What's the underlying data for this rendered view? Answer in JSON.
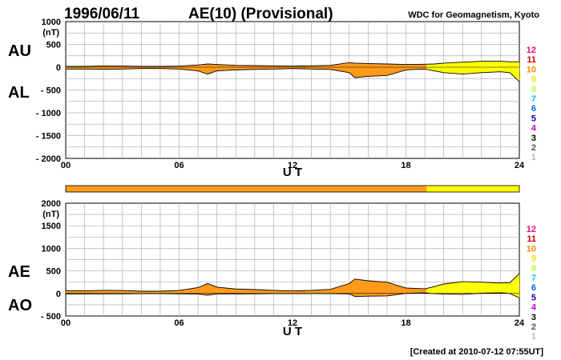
{
  "header": {
    "date": "1996/06/11",
    "title": "AE(10) (Provisional)",
    "source": "WDC for Geomagnetism, Kyoto"
  },
  "footer": {
    "created": "[Created at 2010-07-12 07:55UT]"
  },
  "station_legend": {
    "labels": [
      "12",
      "11",
      "10",
      "9",
      "8",
      "7",
      "6",
      "5",
      "4",
      "3",
      "2",
      "1"
    ],
    "colors": [
      "#ff007f",
      "#cc0000",
      "#ff8c00",
      "#e6e600",
      "#b0ff40",
      "#00c8e6",
      "#0066ff",
      "#1a00b3",
      "#cc00cc",
      "#000000",
      "#555555",
      "#bbbbbb"
    ]
  },
  "fill_colors": {
    "orange": "#ff9a1a",
    "yellow": "#ffff00"
  },
  "chart_data": [
    {
      "type": "area",
      "panel": "AU/AL",
      "series_labels": [
        "AU",
        "AL"
      ],
      "xlabel": "U T",
      "ylabel_unit": "(nT)",
      "ylim": [
        -2000,
        1000
      ],
      "yticks": [
        1000,
        500,
        0,
        -500,
        -1000,
        -1500,
        -2000
      ],
      "ytick_labels": [
        "1000",
        "500",
        "0",
        "- 500",
        "- 1000",
        "- 1500",
        "- 2000"
      ],
      "xlim": [
        0,
        24
      ],
      "xticks": [
        0,
        6,
        12,
        18,
        24
      ],
      "xtick_labels": [
        "00",
        "06",
        "12",
        "18",
        "24"
      ],
      "grid": true,
      "color_change_hours": [
        19.1
      ],
      "colors": [
        "#ff9a1a",
        "#ffff00"
      ],
      "x": [
        0,
        1,
        2,
        3,
        4,
        5,
        6,
        7,
        7.5,
        8,
        9,
        10,
        11,
        12,
        13,
        14,
        15,
        15.3,
        16,
        17,
        18,
        19,
        19.5,
        20,
        21,
        22,
        23,
        23.5,
        24
      ],
      "au": [
        20,
        20,
        30,
        25,
        20,
        20,
        25,
        50,
        70,
        60,
        40,
        35,
        30,
        25,
        30,
        40,
        100,
        90,
        80,
        70,
        60,
        65,
        70,
        90,
        110,
        130,
        130,
        120,
        120
      ],
      "al": [
        -40,
        -40,
        -45,
        -40,
        -30,
        -30,
        -40,
        -80,
        -150,
        -80,
        -60,
        -50,
        -40,
        -30,
        -40,
        -50,
        -120,
        -230,
        -200,
        -180,
        -60,
        -40,
        -80,
        -120,
        -150,
        -120,
        -100,
        -120,
        -320
      ]
    },
    {
      "type": "area",
      "panel": "AE/AO",
      "series_labels": [
        "AE",
        "AO"
      ],
      "xlabel": "U T",
      "ylabel_unit": "(nT)",
      "ylim": [
        -500,
        2000
      ],
      "yticks": [
        2000,
        1500,
        1000,
        500,
        0,
        -500
      ],
      "ytick_labels": [
        "2000",
        "1500",
        "1000",
        "500",
        "0",
        "- 500"
      ],
      "xlim": [
        0,
        24
      ],
      "xticks": [
        0,
        6,
        12,
        18,
        24
      ],
      "xtick_labels": [
        "00",
        "06",
        "12",
        "18",
        "24"
      ],
      "grid": true,
      "color_change_hours": [
        19.1
      ],
      "colors": [
        "#ff9a1a",
        "#ffff00"
      ],
      "x": [
        0,
        1,
        2,
        3,
        4,
        5,
        6,
        7,
        7.5,
        8,
        9,
        10,
        11,
        12,
        13,
        14,
        15,
        15.3,
        16,
        17,
        18,
        19,
        19.5,
        20,
        21,
        22,
        23,
        23.5,
        24
      ],
      "ae": [
        60,
        60,
        70,
        65,
        50,
        50,
        65,
        130,
        220,
        140,
        100,
        85,
        70,
        55,
        70,
        90,
        220,
        320,
        280,
        250,
        120,
        105,
        150,
        210,
        260,
        250,
        230,
        240,
        440
      ],
      "ao": [
        -10,
        -10,
        -8,
        -8,
        -5,
        -5,
        -8,
        -15,
        -40,
        -10,
        -10,
        -8,
        -5,
        -3,
        -5,
        -5,
        -10,
        -70,
        -60,
        -55,
        0,
        13,
        -5,
        -15,
        -20,
        5,
        15,
        0,
        -100
      ]
    }
  ]
}
